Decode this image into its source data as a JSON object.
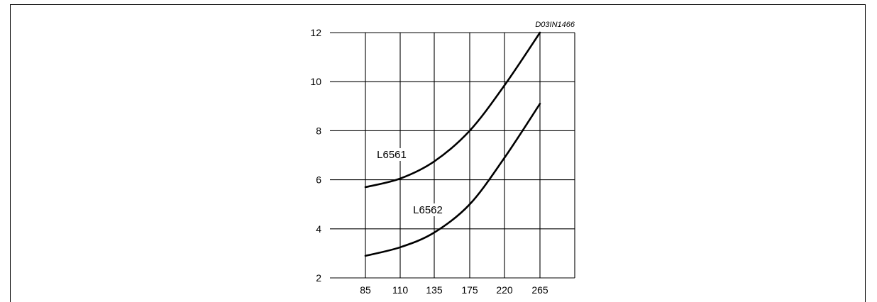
{
  "chart_data": {
    "type": "line",
    "figure_code": "D03IN1466",
    "title": "",
    "xlabel": "",
    "ylabel": "",
    "x_categories": [
      "85",
      "110",
      "135",
      "175",
      "220",
      "265"
    ],
    "y_ticks": [
      2,
      4,
      6,
      8,
      10,
      12
    ],
    "ylim": [
      2,
      12
    ],
    "grid": true,
    "series": [
      {
        "name": "L6561",
        "points": [
          [
            85,
            5.7
          ],
          [
            110,
            6.05
          ],
          [
            135,
            6.75
          ],
          [
            175,
            8.0
          ],
          [
            220,
            9.85
          ],
          [
            265,
            12.0
          ]
        ]
      },
      {
        "name": "L6562",
        "points": [
          [
            85,
            2.9
          ],
          [
            110,
            3.25
          ],
          [
            135,
            3.85
          ],
          [
            175,
            5.0
          ],
          [
            220,
            6.9
          ],
          [
            265,
            9.1
          ]
        ]
      }
    ]
  }
}
